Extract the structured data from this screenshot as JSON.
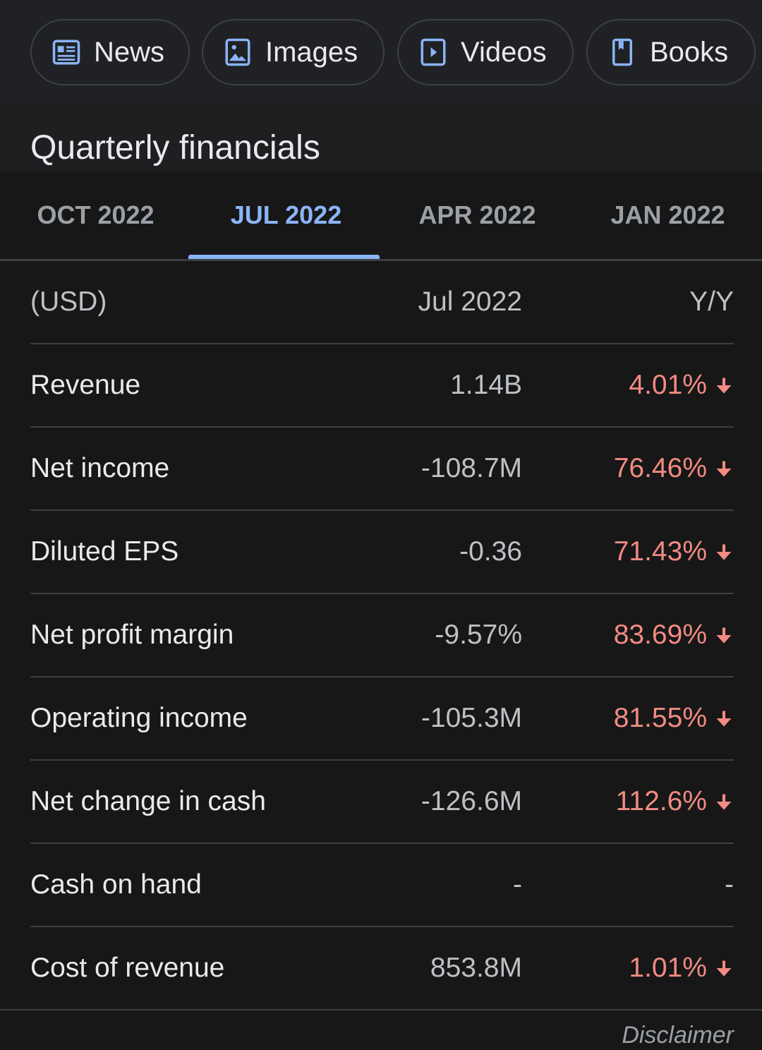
{
  "chips": [
    {
      "label": "News",
      "icon": "news-icon"
    },
    {
      "label": "Images",
      "icon": "image-icon"
    },
    {
      "label": "Videos",
      "icon": "video-icon"
    },
    {
      "label": "Books",
      "icon": "book-icon"
    }
  ],
  "title": "Quarterly financials",
  "tabs": [
    "OCT 2022",
    "JUL 2022",
    "APR 2022",
    "JAN 2022"
  ],
  "active_tab": "JUL 2022",
  "table": {
    "header": {
      "label": "(USD)",
      "value": "Jul 2022",
      "change": "Y/Y"
    },
    "rows": [
      {
        "label": "Revenue",
        "value": "1.14B",
        "change": "4.01%",
        "direction": "down"
      },
      {
        "label": "Net income",
        "value": "-108.7M",
        "change": "76.46%",
        "direction": "down"
      },
      {
        "label": "Diluted EPS",
        "value": "-0.36",
        "change": "71.43%",
        "direction": "down"
      },
      {
        "label": "Net profit margin",
        "value": "-9.57%",
        "change": "83.69%",
        "direction": "down"
      },
      {
        "label": "Operating income",
        "value": "-105.3M",
        "change": "81.55%",
        "direction": "down"
      },
      {
        "label": "Net change in cash",
        "value": "-126.6M",
        "change": "112.6%",
        "direction": "down"
      },
      {
        "label": "Cash on hand",
        "value": "-",
        "change": "-",
        "direction": ""
      },
      {
        "label": "Cost of revenue",
        "value": "853.8M",
        "change": "1.01%",
        "direction": "down"
      }
    ]
  },
  "disclaimer": "Disclaimer",
  "colors": {
    "accent": "#8ab4f8",
    "negative": "#f28b82"
  }
}
